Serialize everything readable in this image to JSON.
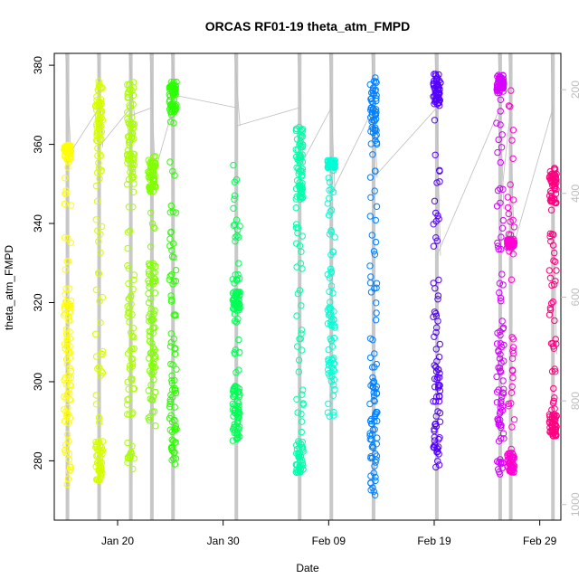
{
  "chart_data": {
    "type": "scatter",
    "title": "ORCAS RF01-19 theta_atm_FMPD",
    "xlabel": "Date",
    "ylabel": "theta_atm_FMPD",
    "xlim": [
      "2016-01-14",
      "2016-03-02"
    ],
    "ylim": [
      265,
      383
    ],
    "x_ticks": [
      {
        "date": "2016-01-20",
        "label": "Jan 20"
      },
      {
        "date": "2016-01-30",
        "label": "Jan 30"
      },
      {
        "date": "2016-02-09",
        "label": "Feb 09"
      },
      {
        "date": "2016-02-19",
        "label": "Feb 19"
      },
      {
        "date": "2016-02-29",
        "label": "Feb 29"
      }
    ],
    "y_ticks": [
      280,
      300,
      320,
      340,
      360,
      380
    ],
    "y2_ticks": [
      200,
      400,
      600,
      800,
      1000
    ],
    "y2lim": [
      1030,
      130
    ],
    "grid": false,
    "series": [
      {
        "flight": 1,
        "date": "2016-01-15",
        "color": "#FFFF00",
        "ymin": 274,
        "ymax": 360,
        "clusters": [
          [
            356,
            360
          ],
          [
            290,
            322
          ]
        ],
        "profile_p": [
          130,
          330
        ]
      },
      {
        "flight": 2,
        "date": "2016-01-18",
        "color": "#D5FF00",
        "ymin": 275,
        "ymax": 376,
        "clusters": [
          [
            360,
            376
          ],
          [
            275,
            285
          ]
        ],
        "profile_p": [
          130,
          310
        ]
      },
      {
        "flight": 3,
        "date": "2016-01-21",
        "color": "#AAFF00",
        "ymin": 276,
        "ymax": 377,
        "clusters": [
          [
            350,
            377
          ],
          [
            280,
            330
          ]
        ],
        "profile_p": [
          130,
          250
        ]
      },
      {
        "flight": 4,
        "date": "2016-01-23",
        "color": "#80FF00",
        "ymin": 286,
        "ymax": 357,
        "clusters": [
          [
            348,
            356
          ],
          [
            290,
            330
          ]
        ],
        "profile_p": [
          130,
          380
        ]
      },
      {
        "flight": 5,
        "date": "2016-01-25",
        "color": "#2BFF00",
        "ymin": 275,
        "ymax": 376,
        "clusters": [
          [
            368,
            376
          ],
          [
            280,
            310
          ]
        ],
        "profile_p": [
          130,
          210
        ]
      },
      {
        "flight": 6,
        "date": "2016-01-31",
        "color": "#00FF55",
        "ymin": 285,
        "ymax": 355,
        "clusters": [
          [
            318,
            323
          ],
          [
            285,
            300
          ]
        ],
        "profile_p": [
          130,
          270
        ]
      },
      {
        "flight": 7,
        "date": "2016-02-06",
        "color": "#00FFAA",
        "ymin": 277,
        "ymax": 367,
        "clusters": [
          [
            346,
            365
          ],
          [
            277,
            285
          ]
        ],
        "profile_p": [
          130,
          350
        ]
      },
      {
        "flight": 8,
        "date": "2016-02-09",
        "color": "#00FFD5",
        "ymin": 287,
        "ymax": 356,
        "clusters": [
          [
            354,
            356
          ],
          [
            300,
            325
          ]
        ],
        "profile_p": [
          130,
          400
        ]
      },
      {
        "flight": 9,
        "date": "2016-02-13",
        "color": "#0080FF",
        "ymin": 270,
        "ymax": 377,
        "clusters": [
          [
            360,
            377
          ],
          [
            270,
            300
          ]
        ],
        "profile_p": [
          130,
          370
        ]
      },
      {
        "flight": 10,
        "date": "2016-02-19",
        "color": "#5500FF",
        "ymin": 277,
        "ymax": 378,
        "clusters": [
          [
            370,
            378
          ],
          [
            282,
            305
          ]
        ],
        "profile_p": [
          130,
          520
        ]
      },
      {
        "flight": 11,
        "date": "2016-02-25",
        "color": "#D500FF",
        "ymin": 274,
        "ymax": 378,
        "clusters": [
          [
            373,
            378
          ],
          [
            275,
            310
          ]
        ],
        "profile_p": [
          130,
          430
        ]
      },
      {
        "flight": 12,
        "date": "2016-02-26",
        "color": "#FF00D4",
        "ymin": 277,
        "ymax": 375,
        "clusters": [
          [
            334,
            336
          ],
          [
            277,
            282
          ]
        ],
        "profile_p": [
          130,
          520
        ]
      },
      {
        "flight": 13,
        "date": "2016-03-01",
        "color": "#FF0080",
        "ymin": 286,
        "ymax": 354,
        "clusters": [
          [
            345,
            354
          ],
          [
            286,
            292
          ]
        ],
        "profile_p": [
          130,
          710
        ]
      }
    ]
  }
}
